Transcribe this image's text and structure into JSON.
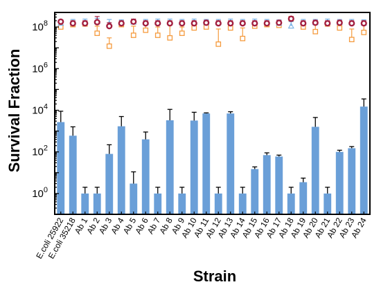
{
  "chart_data": {
    "type": "bar",
    "xlabel": "Strain",
    "ylabel": "Survival Fraction",
    "yscale": "log",
    "ylim": [
      0.1,
      500000000
    ],
    "y_ticks": [
      1,
      100,
      10000,
      1000000,
      100000000
    ],
    "y_tick_labels": [
      {
        "base": "10",
        "exp": "0"
      },
      {
        "base": "10",
        "exp": "2"
      },
      {
        "base": "10",
        "exp": "4"
      },
      {
        "base": "10",
        "exp": "6"
      },
      {
        "base": "10",
        "exp": "8"
      }
    ],
    "categories": [
      "E.coli 25922",
      "E.coli 35218",
      "Ab 1",
      "Ab 2",
      "Ab 3",
      "Ab 4",
      "Ab 5",
      "Ab 6",
      "Ab 7",
      "Ab 8",
      "Ab 9",
      "Ab 10",
      "Ab 11",
      "Ab 12",
      "Ab 13",
      "Ab 14",
      "Ab 15",
      "Ab 16",
      "Ab 17",
      "Ab 18",
      "Ab 19",
      "Ab 20",
      "Ab 21",
      "Ab 22",
      "Ab 23",
      "Ab 24"
    ],
    "bars": {
      "color": "#6a9fd8",
      "values": [
        2700,
        600,
        1,
        1,
        80,
        1700,
        3,
        400,
        1,
        3300,
        1,
        3200,
        7000,
        1,
        7000,
        1,
        15,
        70,
        60,
        1,
        3.5,
        1600,
        1,
        100,
        150,
        15000
      ],
      "err_upper": [
        9000,
        1600,
        2,
        2,
        220,
        5000,
        11,
        900,
        2,
        11000,
        2,
        8000,
        7500,
        2,
        8500,
        2,
        19,
        90,
        70,
        2,
        5.5,
        4500,
        2,
        120,
        180,
        35000
      ]
    },
    "markers": [
      {
        "style": "open-square",
        "color": "#f59a3c",
        "values": [
          100000000,
          130000000,
          140000000,
          50000000,
          12000000,
          130000000,
          40000000,
          70000000,
          40000000,
          30000000,
          50000000,
          90000000,
          100000000,
          15000000,
          90000000,
          28000000,
          110000000,
          130000000,
          120000000,
          250000000,
          100000000,
          60000000,
          140000000,
          90000000,
          25000000,
          55000000
        ],
        "err_upper": [
          160000000,
          180000000,
          190000000,
          110000000,
          30000000,
          180000000,
          110000000,
          150000000,
          100000000,
          120000000,
          100000000,
          150000000,
          160000000,
          80000000,
          160000000,
          90000000,
          170000000,
          180000000,
          180000000,
          300000000,
          170000000,
          150000000,
          190000000,
          170000000,
          80000000,
          140000000
        ]
      },
      {
        "style": "open-triangle",
        "color": "#7bb3e6",
        "values": [
          150000000,
          160000000,
          170000000,
          180000000,
          140000000,
          160000000,
          170000000,
          160000000,
          170000000,
          170000000,
          160000000,
          170000000,
          160000000,
          160000000,
          170000000,
          160000000,
          170000000,
          160000000,
          150000000,
          110000000,
          160000000,
          160000000,
          170000000,
          160000000,
          160000000,
          150000000
        ],
        "err_upper": [
          220000000,
          230000000,
          240000000,
          260000000,
          230000000,
          220000000,
          240000000,
          230000000,
          240000000,
          240000000,
          230000000,
          240000000,
          230000000,
          230000000,
          240000000,
          230000000,
          240000000,
          230000000,
          220000000,
          180000000,
          230000000,
          230000000,
          240000000,
          230000000,
          230000000,
          220000000
        ]
      },
      {
        "style": "open-circle",
        "color": "#a32040",
        "values": [
          180000000,
          150000000,
          150000000,
          170000000,
          110000000,
          150000000,
          180000000,
          150000000,
          150000000,
          150000000,
          150000000,
          150000000,
          160000000,
          150000000,
          150000000,
          150000000,
          150000000,
          150000000,
          160000000,
          250000000,
          150000000,
          160000000,
          150000000,
          160000000,
          150000000,
          150000000
        ],
        "err_upper": [
          220000000,
          200000000,
          200000000,
          320000000,
          160000000,
          200000000,
          240000000,
          200000000,
          200000000,
          200000000,
          200000000,
          200000000,
          210000000,
          200000000,
          200000000,
          200000000,
          200000000,
          200000000,
          210000000,
          310000000,
          200000000,
          210000000,
          200000000,
          210000000,
          200000000,
          200000000
        ]
      }
    ]
  }
}
